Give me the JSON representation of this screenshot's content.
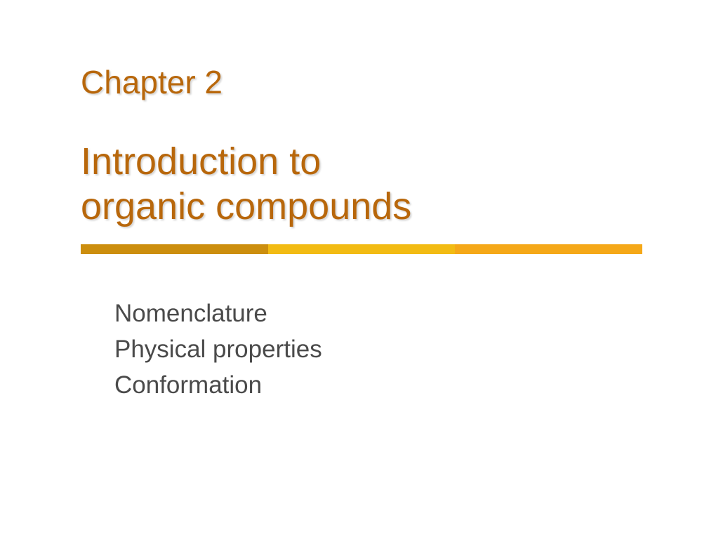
{
  "slide": {
    "chapter_label": "Chapter 2",
    "title_line1": "Introduction to",
    "title_line2": "organic compounds",
    "divider_colors": [
      "#cc8e0e",
      "#f2bb13",
      "#f5a818"
    ],
    "topics": {
      "item0": "Nomenclature",
      "item1": "Physical properties",
      "item2": "Conformation"
    }
  }
}
